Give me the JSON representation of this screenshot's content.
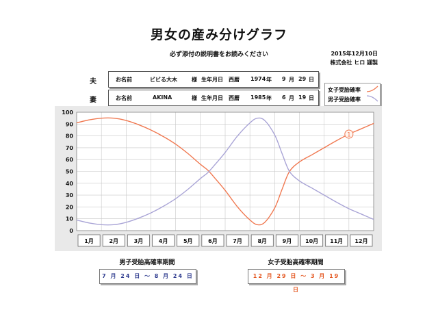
{
  "header": {
    "title": "男女の産み分けグラフ",
    "subtitle": "必ず添付の説明書をお読みください",
    "date": "2015年12月10日",
    "company": "株式会社 ヒロ 謹製"
  },
  "husband": {
    "label": "夫",
    "name_label": "お名前",
    "name": "ビビる大木",
    "honorific": "様",
    "birthdate_label": "生年月日",
    "era": "西暦",
    "year": "1974",
    "year_unit": "年",
    "month": "9",
    "month_unit": "月",
    "day": "29",
    "day_unit": "日"
  },
  "wife": {
    "label": "妻",
    "name_label": "お名前",
    "name": "AKINA",
    "honorific": "様",
    "birthdate_label": "生年月日",
    "era": "西暦",
    "year": "1985",
    "year_unit": "年",
    "month": "6",
    "month_unit": "月",
    "day": "19",
    "day_unit": "日"
  },
  "legend": {
    "girl": "女子受胎確率",
    "boy": "男子受胎確率"
  },
  "periods": {
    "boy_title": "男子受胎高確率期間",
    "boy_range": "7 月 24 日 〜  8 月 24 日",
    "girl_title": "女子受胎高確率期間",
    "girl_range": "12 月 29 日 〜  3 月 19 日"
  },
  "colors": {
    "girl": "#f07850",
    "boy": "#a9a4d6",
    "plot_bg": "#ffffff",
    "frame_bg": "#e9e9e9"
  },
  "chart_data": {
    "type": "line",
    "categories": [
      "1月",
      "2月",
      "3月",
      "4月",
      "5月",
      "6月",
      "7月",
      "8月",
      "9月",
      "10月",
      "11月",
      "12月"
    ],
    "ylim": [
      0,
      100
    ],
    "yticks": [
      0,
      10,
      20,
      30,
      40,
      50,
      60,
      70,
      80,
      90,
      100
    ],
    "grid": true,
    "legend_position": "top-right",
    "series": [
      {
        "name": "女子受胎確率",
        "x": [
          0.0,
          0.5,
          1.0,
          1.5,
          2.0,
          2.5,
          3.0,
          3.5,
          4.0,
          4.5,
          5.0,
          5.3,
          5.6,
          6.0,
          6.5,
          7.0,
          7.3,
          7.6,
          8.0,
          8.3,
          8.6,
          9.0,
          9.5,
          10.0,
          10.5,
          11.0,
          11.5,
          12.0
        ],
        "values": [
          91,
          93.5,
          95,
          95,
          93,
          89.5,
          85,
          79.5,
          73,
          65,
          56,
          51,
          44,
          34,
          20,
          9,
          5,
          7,
          19,
          35,
          50,
          58,
          64,
          70,
          76,
          81.5,
          86,
          90.5
        ]
      },
      {
        "name": "男子受胎確率",
        "x": [
          0.0,
          0.5,
          1.0,
          1.5,
          2.0,
          2.5,
          3.0,
          3.5,
          4.0,
          4.5,
          5.0,
          5.3,
          5.6,
          6.0,
          6.5,
          7.0,
          7.3,
          7.6,
          8.0,
          8.3,
          8.6,
          9.0,
          9.5,
          10.0,
          10.5,
          11.0,
          11.5,
          12.0
        ],
        "values": [
          9,
          6.5,
          5,
          5,
          7,
          10.5,
          15,
          20.5,
          27,
          35,
          44,
          49,
          56,
          66,
          80,
          91,
          95,
          93,
          81,
          65,
          50,
          42,
          36,
          30,
          24,
          18.5,
          14,
          9.5
        ]
      }
    ],
    "annotation": {
      "text": "①",
      "series": "女子受胎確率",
      "x": 11.0,
      "y": 81.5
    }
  }
}
